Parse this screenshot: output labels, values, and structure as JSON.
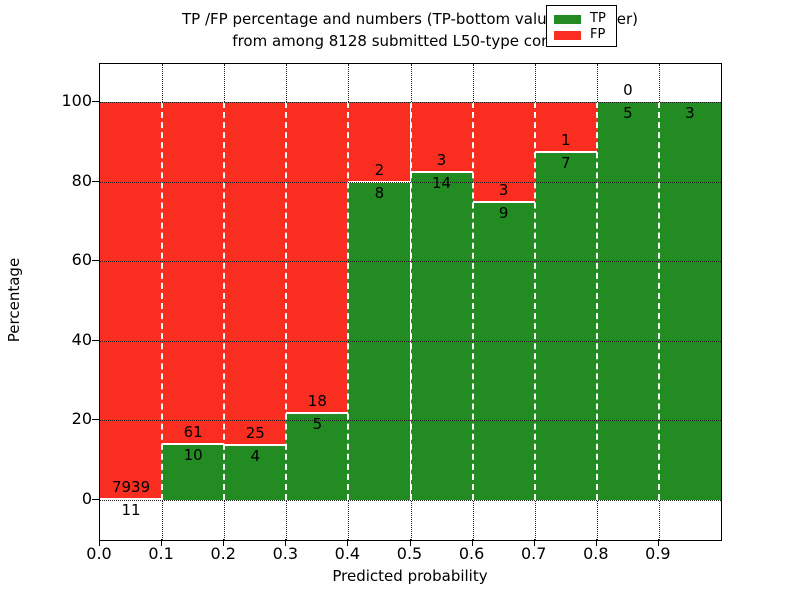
{
  "title": {
    "line1": "TP /FP percentage and numbers (TP-bottom value, FP-upper)",
    "line2": "from among 8128 submitted L50-type contacts"
  },
  "axes": {
    "x_label": "Predicted probability",
    "y_label": "Percentage",
    "x_tick_labels": [
      "0.0",
      "0.1",
      "0.2",
      "0.3",
      "0.4",
      "0.5",
      "0.6",
      "0.7",
      "0.8",
      "0.9"
    ],
    "y_tick_labels": [
      "0",
      "20",
      "40",
      "60",
      "80",
      "100"
    ],
    "y_tick_values": [
      0,
      20,
      40,
      60,
      80,
      100
    ],
    "x_range": [
      0.0,
      1.0
    ],
    "y_range_percent": [
      -10,
      110
    ],
    "grid": "dotted"
  },
  "legend": {
    "position": "upper right",
    "items": [
      {
        "label": "TP",
        "color": "#228b22"
      },
      {
        "label": "FP",
        "color": "#f92e20"
      }
    ]
  },
  "chart_data": {
    "type": "bar",
    "stacked": true,
    "normalized_to_percent": true,
    "title": "TP /FP percentage and numbers (TP-bottom value, FP-upper) from among 8128 submitted L50-type contacts",
    "xlabel": "Predicted probability",
    "ylabel": "Percentage",
    "total_contacts": 8128,
    "bin_edges": [
      0.0,
      0.1,
      0.2,
      0.3,
      0.4,
      0.5,
      0.6,
      0.7,
      0.8,
      0.9,
      1.0
    ],
    "series": [
      {
        "name": "TP",
        "color": "#228b22",
        "counts": [
          11,
          10,
          4,
          5,
          8,
          14,
          9,
          7,
          5,
          3
        ]
      },
      {
        "name": "FP",
        "color": "#f92e20",
        "counts": [
          7939,
          61,
          25,
          18,
          2,
          3,
          3,
          1,
          0,
          0
        ]
      }
    ],
    "tp_labels": [
      "11",
      "10",
      "4",
      "5",
      "8",
      "14",
      "9",
      "7",
      "5",
      "3"
    ],
    "fp_labels": [
      "7939",
      "61",
      "25",
      "18",
      "2",
      "3",
      "3",
      "1",
      "0",
      "0"
    ],
    "fp_label_visible": [
      true,
      true,
      true,
      true,
      true,
      true,
      true,
      true,
      true,
      false
    ],
    "tp_percent": [
      0.14,
      14.08,
      13.79,
      21.74,
      80.0,
      82.35,
      75.0,
      87.5,
      100.0,
      100.0
    ]
  }
}
